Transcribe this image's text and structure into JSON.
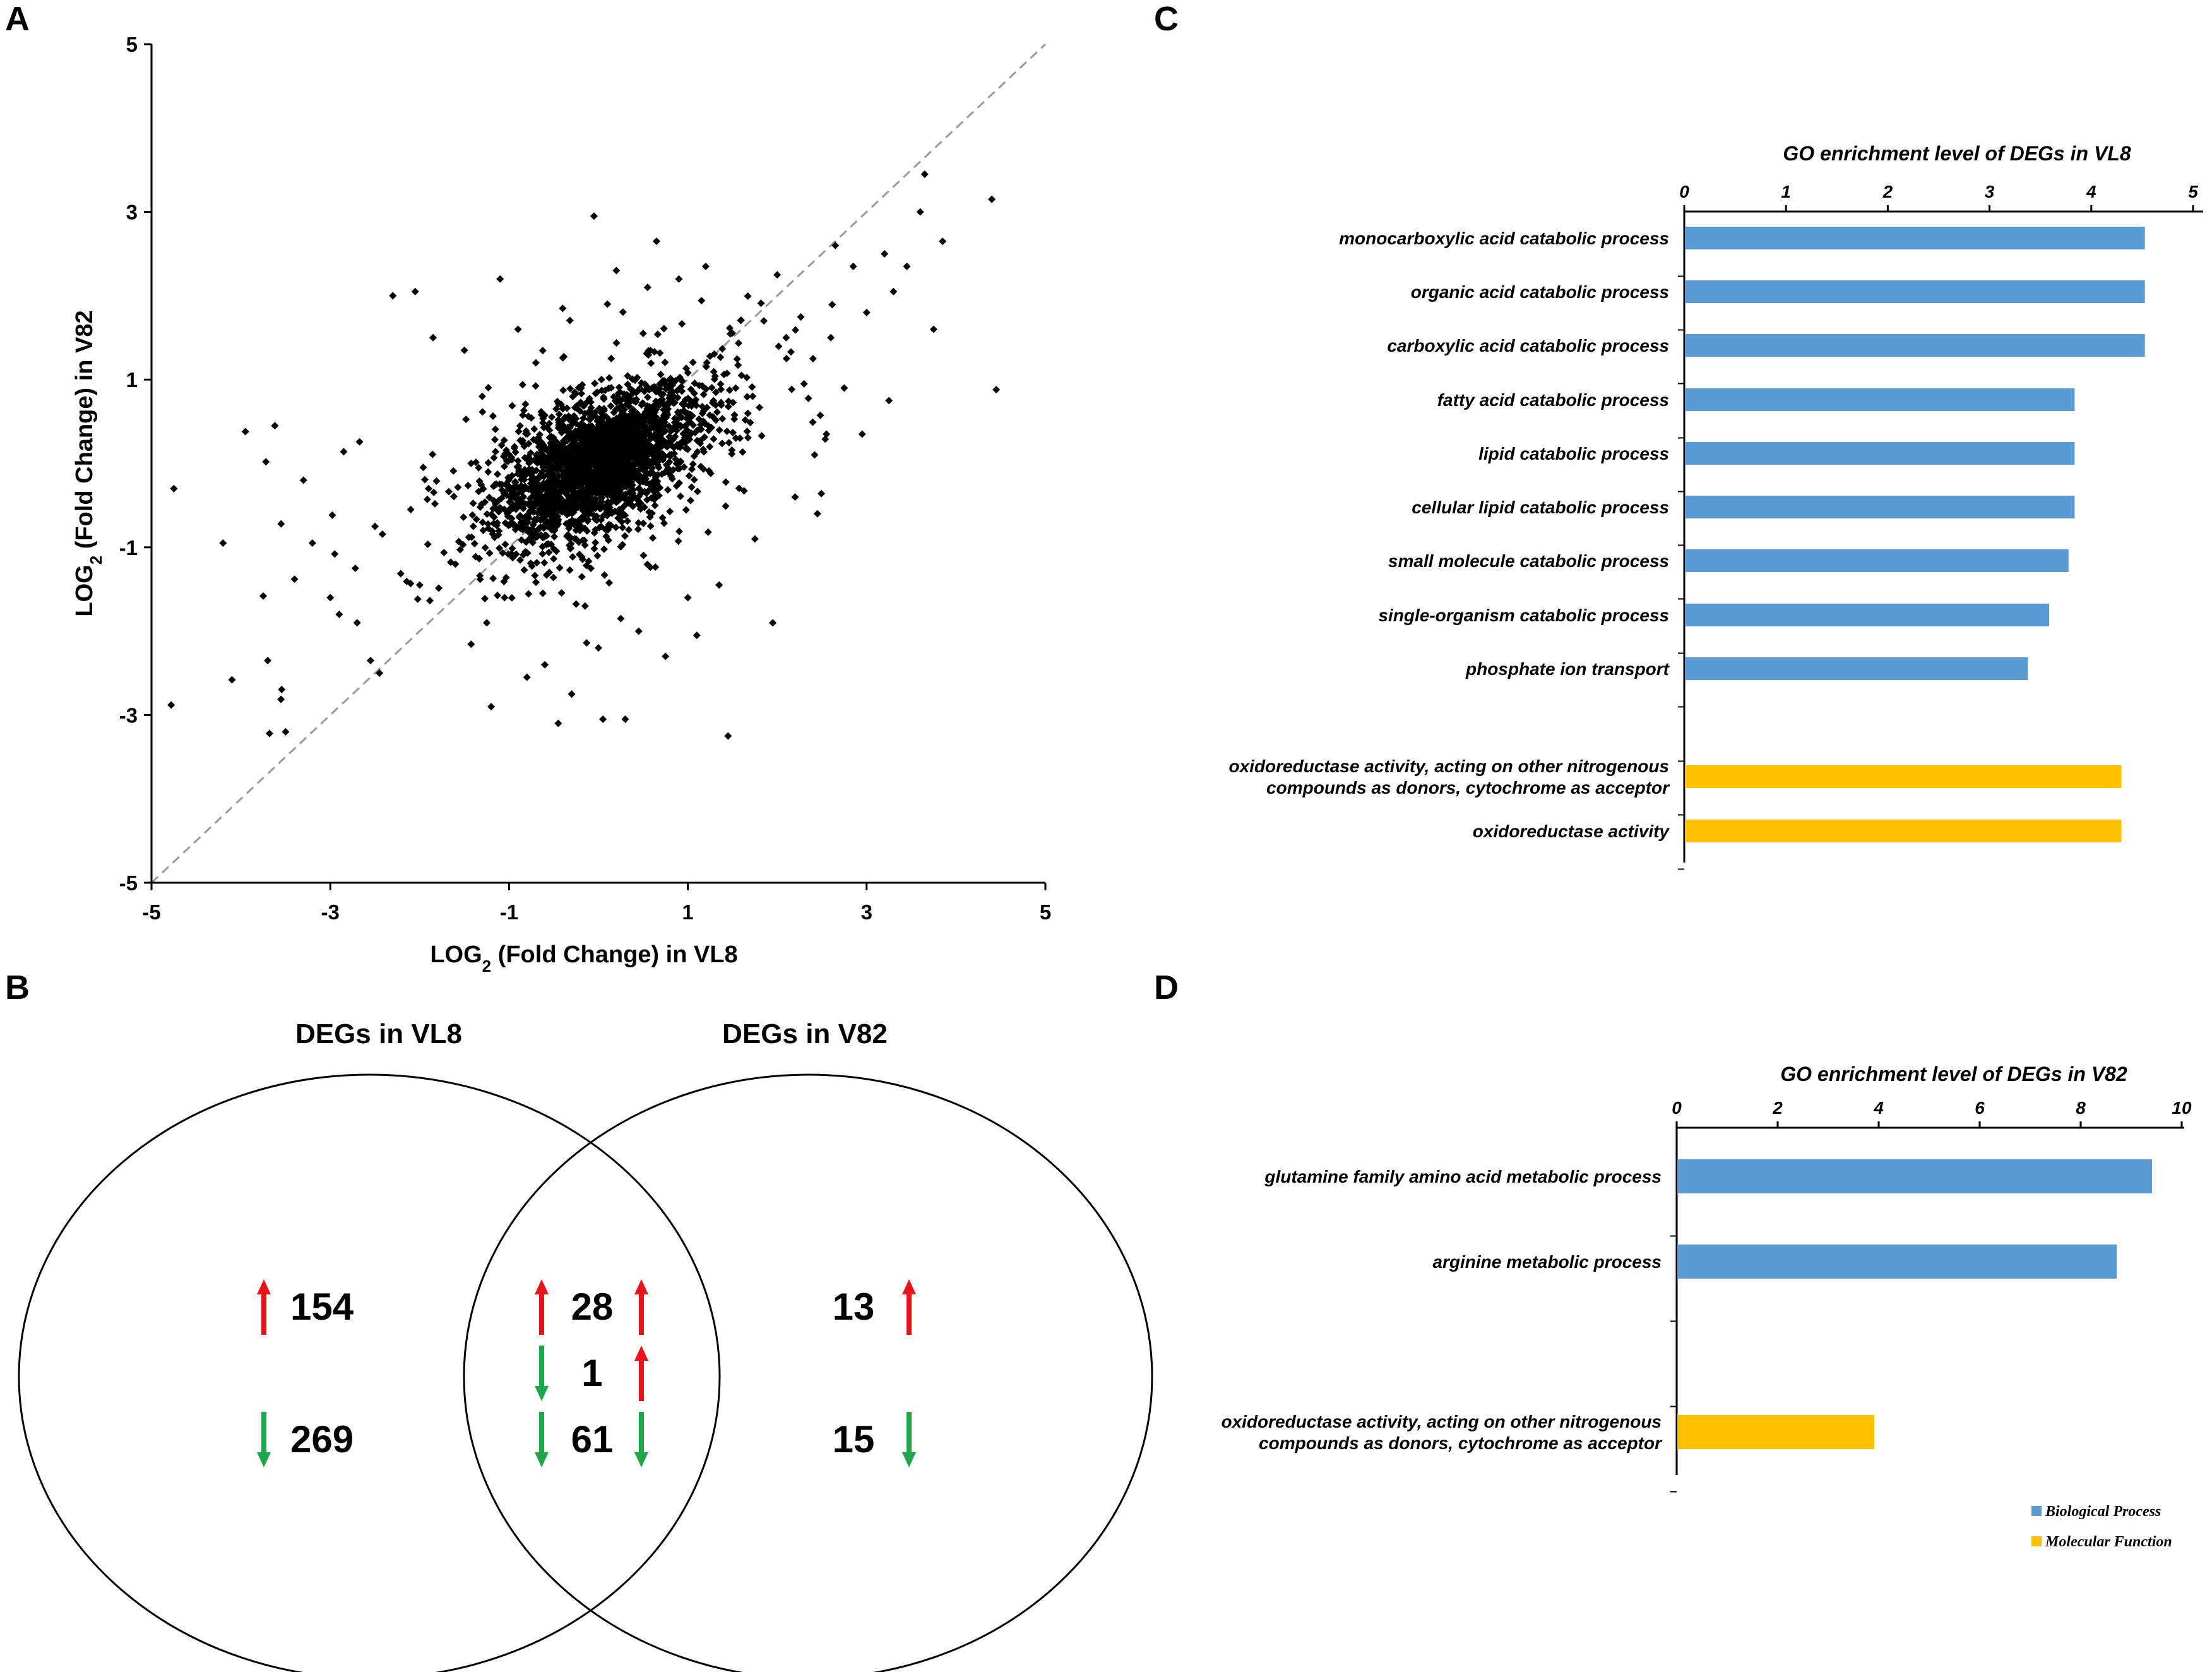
{
  "colors": {
    "bp": "#5b9bd5",
    "mf": "#ffc000",
    "up": "#e8141c",
    "down": "#1fa64a",
    "diag": "#9a9a9a",
    "point": "#000000"
  },
  "panels": {
    "A": "A",
    "B": "B",
    "C": "C",
    "D": "D"
  },
  "chart_data": [
    {
      "id": "A",
      "type": "scatter",
      "title": "",
      "xlabel_pre": "LOG",
      "xlabel_sub": "2",
      "xlabel_post": " (Fold Change) in VL8",
      "ylabel_pre": "LOG",
      "ylabel_sub": "2",
      "ylabel_post": " (Fold Change) in V82",
      "xlim": [
        -5,
        5
      ],
      "ylim": [
        -5,
        5
      ],
      "xticks": [
        "-5",
        "-3",
        "-1",
        "1",
        "3",
        "5"
      ],
      "yticks": [
        "-5",
        "-3",
        "-1",
        "1",
        "3",
        "5"
      ],
      "diagonal": "y = x (dashed)",
      "points": [
        [
          -4.75,
          -0.3
        ],
        [
          -4.78,
          -2.88
        ],
        [
          -4.2,
          -0.95
        ],
        [
          -4.1,
          -2.58
        ],
        [
          -3.95,
          0.38
        ],
        [
          -3.75,
          -1.58
        ],
        [
          -3.72,
          0.02
        ],
        [
          -3.7,
          -2.35
        ],
        [
          -3.68,
          -3.22
        ],
        [
          -3.62,
          0.45
        ],
        [
          -3.55,
          -0.72
        ],
        [
          -3.5,
          -3.2
        ],
        [
          -3.4,
          -1.38
        ],
        [
          -3.3,
          -0.2
        ],
        [
          -3.2,
          -0.95
        ],
        [
          -3.0,
          -1.6
        ],
        [
          -2.95,
          -1.08
        ],
        [
          -2.9,
          -1.8
        ],
        [
          -2.85,
          0.14
        ],
        [
          -2.72,
          -1.25
        ],
        [
          -2.7,
          -1.9
        ],
        [
          -2.55,
          -2.35
        ],
        [
          -2.5,
          -0.75
        ],
        [
          -2.45,
          -2.5
        ],
        [
          -2.3,
          2.0
        ],
        [
          -2.1,
          -0.55
        ],
        [
          -2.05,
          2.05
        ],
        [
          -2.0,
          -1.45
        ],
        [
          -1.9,
          -0.3
        ],
        [
          -1.85,
          1.5
        ],
        [
          -1.6,
          -1.2
        ],
        [
          -1.5,
          1.35
        ],
        [
          -1.4,
          -0.75
        ],
        [
          -1.3,
          0.8
        ],
        [
          -1.25,
          -1.9
        ],
        [
          -1.2,
          -2.9
        ],
        [
          -1.1,
          2.2
        ],
        [
          -1.05,
          -1.6
        ],
        [
          -0.9,
          1.6
        ],
        [
          -0.8,
          -2.55
        ],
        [
          -0.7,
          1.2
        ],
        [
          -0.6,
          -2.4
        ],
        [
          -0.55,
          -1.3
        ],
        [
          -0.45,
          -3.1
        ],
        [
          -0.4,
          1.85
        ],
        [
          -0.3,
          -2.75
        ],
        [
          -0.15,
          -1.7
        ],
        [
          -0.05,
          2.95
        ],
        [
          0.0,
          -2.2
        ],
        [
          0.05,
          -3.05
        ],
        [
          0.1,
          1.9
        ],
        [
          0.2,
          2.3
        ],
        [
          0.25,
          -1.85
        ],
        [
          0.3,
          -3.05
        ],
        [
          0.45,
          -2.0
        ],
        [
          0.5,
          1.55
        ],
        [
          0.55,
          2.1
        ],
        [
          0.65,
          2.65
        ],
        [
          0.75,
          -2.3
        ],
        [
          0.9,
          2.2
        ],
        [
          1.0,
          -1.6
        ],
        [
          1.1,
          -2.05
        ],
        [
          1.2,
          2.35
        ],
        [
          1.35,
          -1.45
        ],
        [
          1.45,
          -3.25
        ],
        [
          1.6,
          1.05
        ],
        [
          1.75,
          -0.9
        ],
        [
          1.85,
          1.7
        ],
        [
          1.95,
          -1.9
        ],
        [
          2.0,
          2.25
        ],
        [
          2.1,
          1.5
        ],
        [
          2.2,
          -0.4
        ],
        [
          2.3,
          0.95
        ],
        [
          2.4,
          1.25
        ],
        [
          2.45,
          -0.6
        ],
        [
          2.55,
          0.35
        ],
        [
          2.6,
          1.5
        ],
        [
          2.65,
          2.6
        ],
        [
          2.75,
          0.9
        ],
        [
          2.85,
          2.35
        ],
        [
          2.95,
          0.35
        ],
        [
          3.0,
          1.8
        ],
        [
          3.2,
          2.5
        ],
        [
          3.25,
          0.75
        ],
        [
          3.3,
          2.05
        ],
        [
          3.45,
          2.35
        ],
        [
          3.6,
          3.0
        ],
        [
          3.65,
          3.45
        ],
        [
          3.75,
          1.6
        ],
        [
          3.85,
          2.65
        ],
        [
          4.4,
          3.15
        ],
        [
          4.45,
          0.88
        ]
      ],
      "cloud": {
        "n": 2600,
        "sd_major": 0.56,
        "sd_minor": 0.34,
        "sd_x": 0.55,
        "sd_y": 0.45,
        "rho": 0.55
      }
    },
    {
      "id": "C",
      "type": "bar",
      "orientation": "horizontal",
      "title": "GO enrichment level of DEGs in VL8",
      "xlim": [
        0,
        5
      ],
      "xticks": [
        "0",
        "1",
        "2",
        "3",
        "4",
        "5"
      ],
      "categories": [
        "monocarboxylic acid catabolic process",
        "organic acid catabolic process",
        "carboxylic acid catabolic process",
        "fatty acid catabolic process",
        "lipid catabolic process",
        "cellular lipid catabolic process",
        "small molecule catabolic process",
        "single-organism catabolic process",
        "phosphate ion transport",
        "",
        "oxidoreductase activity, acting on other nitrogenous compounds as donors, cytochrome as acceptor",
        "oxidoreductase activity"
      ],
      "values": [
        4.52,
        4.52,
        4.52,
        3.83,
        3.83,
        3.83,
        3.77,
        3.58,
        3.37,
        null,
        4.29,
        4.29
      ],
      "groups": [
        "bp",
        "bp",
        "bp",
        "bp",
        "bp",
        "bp",
        "bp",
        "bp",
        "bp",
        "none",
        "mf",
        "mf"
      ],
      "label_lines": [
        [
          "monocarboxylic acid catabolic process"
        ],
        [
          "organic acid catabolic process"
        ],
        [
          "carboxylic acid catabolic process"
        ],
        [
          "fatty acid catabolic process"
        ],
        [
          "lipid catabolic process"
        ],
        [
          "cellular lipid catabolic process"
        ],
        [
          "small molecule catabolic process"
        ],
        [
          "single-organism catabolic process"
        ],
        [
          "phosphate ion transport"
        ],
        [],
        [
          "oxidoreductase activity, acting on other nitrogenous",
          "compounds as donors, cytochrome as acceptor"
        ],
        [
          "oxidoreductase activity"
        ]
      ]
    },
    {
      "id": "D",
      "type": "bar",
      "orientation": "horizontal",
      "title": "GO enrichment level of DEGs in V82",
      "xlim": [
        0,
        10
      ],
      "xticks": [
        "0",
        "2",
        "4",
        "6",
        "8",
        "10"
      ],
      "categories": [
        "glutamine family amino acid metabolic process",
        "arginine metabolic process",
        "",
        "oxidoreductase activity, acting on other nitrogenous compounds as donors, cytochrome as acceptor"
      ],
      "values": [
        9.4,
        8.7,
        null,
        3.9
      ],
      "groups": [
        "bp",
        "bp",
        "none",
        "mf"
      ],
      "label_lines": [
        [
          "glutamine family amino acid metabolic process"
        ],
        [
          "arginine metabolic process"
        ],
        [],
        [
          "oxidoreductase activity, acting on other nitrogenous",
          "compounds as donors, cytochrome as acceptor"
        ]
      ],
      "legend": [
        {
          "label": "Biological Process",
          "group": "bp"
        },
        {
          "label": "Molecular Function",
          "group": "mf"
        }
      ]
    }
  ],
  "venn": {
    "left_title": "DEGs in VL8",
    "right_title": "DEGs in V82",
    "left_up": "154",
    "left_down": "269",
    "mid_up": "28",
    "mid_mixed": "1",
    "mid_down": "61",
    "right_up": "13",
    "right_down": "15"
  }
}
